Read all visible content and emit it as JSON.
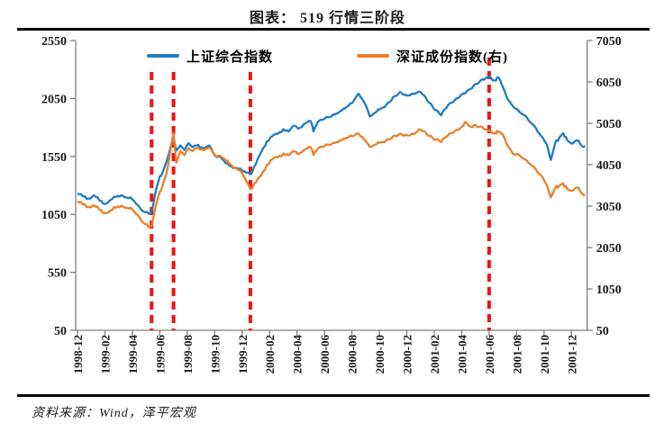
{
  "header": {
    "title": "图表： 519 行情三阶段"
  },
  "footer": {
    "source": "资料来源：Wind，泽平宏观"
  },
  "legend": [
    {
      "label": "上证综合指数",
      "color": "#1E7CC0"
    },
    {
      "label": "深证成份指数(右)",
      "color": "#E8802C"
    }
  ],
  "chart_data": {
    "type": "line",
    "title": "图表： 519 行情三阶段",
    "x_axis": {
      "start": "1998-12",
      "end": "2001-12",
      "months_per_tick": 2,
      "tick_labels": [
        "1998-12",
        "1999-02",
        "1999-04",
        "1999-06",
        "1999-08",
        "1999-10",
        "1999-12",
        "2000-02",
        "2000-04",
        "2000-06",
        "2000-08",
        "2000-10",
        "2000-12",
        "2001-02",
        "2001-04",
        "2001-06",
        "2001-08",
        "2001-10",
        "2001-12"
      ]
    },
    "left_axis": {
      "min": 50,
      "max": 2550,
      "ticks": [
        2550,
        2050,
        1550,
        1050,
        550,
        50
      ]
    },
    "right_axis": {
      "min": 50,
      "max": 7050,
      "ticks": [
        7050,
        6050,
        5050,
        4050,
        3050,
        2050,
        1050,
        50
      ]
    },
    "event_lines": {
      "color": "#F21212",
      "style": "dashed",
      "months": [
        5.4,
        7.0,
        12.6,
        30.0
      ]
    },
    "series": [
      {
        "name": "上证综合指数",
        "axis": "left",
        "color": "#1E7CC0",
        "points": [
          [
            0,
            1230
          ],
          [
            0.4,
            1205
          ],
          [
            0.8,
            1185
          ],
          [
            1.2,
            1215
          ],
          [
            1.6,
            1170
          ],
          [
            2,
            1140
          ],
          [
            2.4,
            1175
          ],
          [
            2.8,
            1200
          ],
          [
            3.2,
            1215
          ],
          [
            3.6,
            1195
          ],
          [
            4,
            1180
          ],
          [
            4.4,
            1130
          ],
          [
            4.8,
            1075
          ],
          [
            5.2,
            1055
          ],
          [
            5.4,
            1060
          ],
          [
            5.7,
            1250
          ],
          [
            6,
            1380
          ],
          [
            6.2,
            1410
          ],
          [
            6.5,
            1510
          ],
          [
            7,
            1715
          ],
          [
            7.2,
            1600
          ],
          [
            7.5,
            1645
          ],
          [
            7.8,
            1605
          ],
          [
            8.1,
            1665
          ],
          [
            8.4,
            1630
          ],
          [
            8.8,
            1650
          ],
          [
            9.2,
            1615
          ],
          [
            9.6,
            1645
          ],
          [
            10,
            1560
          ],
          [
            10.4,
            1545
          ],
          [
            10.8,
            1490
          ],
          [
            11.2,
            1465
          ],
          [
            11.6,
            1450
          ],
          [
            12,
            1430
          ],
          [
            12.3,
            1410
          ],
          [
            12.6,
            1395
          ],
          [
            13,
            1485
          ],
          [
            13.4,
            1590
          ],
          [
            13.8,
            1680
          ],
          [
            14.2,
            1725
          ],
          [
            14.6,
            1745
          ],
          [
            15,
            1785
          ],
          [
            15.4,
            1765
          ],
          [
            15.8,
            1815
          ],
          [
            16.2,
            1795
          ],
          [
            16.6,
            1835
          ],
          [
            17,
            1855
          ],
          [
            17.2,
            1765
          ],
          [
            17.5,
            1845
          ],
          [
            18,
            1875
          ],
          [
            18.5,
            1895
          ],
          [
            19,
            1925
          ],
          [
            19.5,
            1965
          ],
          [
            20,
            2010
          ],
          [
            20.5,
            2090
          ],
          [
            21,
            1995
          ],
          [
            21.3,
            1895
          ],
          [
            21.7,
            1930
          ],
          [
            22,
            1955
          ],
          [
            22.5,
            1995
          ],
          [
            23,
            2060
          ],
          [
            23.5,
            2105
          ],
          [
            24,
            2075
          ],
          [
            24.5,
            2090
          ],
          [
            25,
            2105
          ],
          [
            25.5,
            2030
          ],
          [
            26,
            1955
          ],
          [
            26.5,
            1905
          ],
          [
            27,
            1990
          ],
          [
            27.5,
            2035
          ],
          [
            28,
            2085
          ],
          [
            28.5,
            2125
          ],
          [
            29,
            2175
          ],
          [
            29.5,
            2215
          ],
          [
            30,
            2240
          ],
          [
            30.4,
            2205
          ],
          [
            30.7,
            2230
          ],
          [
            31,
            2150
          ],
          [
            31.4,
            2035
          ],
          [
            31.8,
            1975
          ],
          [
            32.2,
            1935
          ],
          [
            32.6,
            1905
          ],
          [
            33,
            1845
          ],
          [
            33.4,
            1795
          ],
          [
            33.8,
            1725
          ],
          [
            34.2,
            1655
          ],
          [
            34.5,
            1520
          ],
          [
            34.8,
            1660
          ],
          [
            35.1,
            1710
          ],
          [
            35.4,
            1750
          ],
          [
            35.7,
            1690
          ],
          [
            36,
            1660
          ],
          [
            36.4,
            1690
          ],
          [
            36.8,
            1635
          ],
          [
            37,
            1640
          ]
        ]
      },
      {
        "name": "深证成份指数(右)",
        "axis": "right",
        "color": "#E8802C",
        "points": [
          [
            0,
            3160
          ],
          [
            0.4,
            3090
          ],
          [
            0.8,
            3030
          ],
          [
            1.2,
            3070
          ],
          [
            1.6,
            2960
          ],
          [
            2,
            2880
          ],
          [
            2.4,
            2940
          ],
          [
            2.8,
            3010
          ],
          [
            3.2,
            3060
          ],
          [
            3.6,
            3010
          ],
          [
            4,
            2960
          ],
          [
            4.4,
            2830
          ],
          [
            4.8,
            2650
          ],
          [
            5.2,
            2540
          ],
          [
            5.4,
            2560
          ],
          [
            5.7,
            3050
          ],
          [
            6,
            3400
          ],
          [
            6.2,
            3550
          ],
          [
            6.5,
            3850
          ],
          [
            7,
            4820
          ],
          [
            7.2,
            4100
          ],
          [
            7.5,
            4380
          ],
          [
            7.8,
            4280
          ],
          [
            8.1,
            4450
          ],
          [
            8.4,
            4380
          ],
          [
            8.8,
            4470
          ],
          [
            9.2,
            4400
          ],
          [
            9.6,
            4460
          ],
          [
            10,
            4290
          ],
          [
            10.4,
            4260
          ],
          [
            10.8,
            4150
          ],
          [
            11.2,
            4050
          ],
          [
            11.6,
            3950
          ],
          [
            12,
            3850
          ],
          [
            12.3,
            3650
          ],
          [
            12.6,
            3460
          ],
          [
            13,
            3620
          ],
          [
            13.4,
            3800
          ],
          [
            13.8,
            4050
          ],
          [
            14.2,
            4180
          ],
          [
            14.6,
            4230
          ],
          [
            15,
            4320
          ],
          [
            15.4,
            4280
          ],
          [
            15.8,
            4370
          ],
          [
            16.2,
            4330
          ],
          [
            16.6,
            4420
          ],
          [
            17,
            4470
          ],
          [
            17.2,
            4280
          ],
          [
            17.5,
            4430
          ],
          [
            18,
            4500
          ],
          [
            18.5,
            4540
          ],
          [
            19,
            4600
          ],
          [
            19.5,
            4680
          ],
          [
            20,
            4740
          ],
          [
            20.5,
            4800
          ],
          [
            21,
            4620
          ],
          [
            21.3,
            4480
          ],
          [
            21.7,
            4540
          ],
          [
            22,
            4580
          ],
          [
            22.5,
            4640
          ],
          [
            23,
            4740
          ],
          [
            23.5,
            4800
          ],
          [
            24,
            4760
          ],
          [
            24.5,
            4790
          ],
          [
            25,
            4900
          ],
          [
            25.5,
            4760
          ],
          [
            26,
            4650
          ],
          [
            26.5,
            4600
          ],
          [
            27,
            4760
          ],
          [
            27.5,
            4860
          ],
          [
            28,
            4960
          ],
          [
            28.3,
            5080
          ],
          [
            28.7,
            4960
          ],
          [
            29,
            5010
          ],
          [
            29.5,
            4960
          ],
          [
            30,
            4870
          ],
          [
            30.4,
            4820
          ],
          [
            30.7,
            4840
          ],
          [
            31,
            4780
          ],
          [
            31.4,
            4480
          ],
          [
            31.8,
            4300
          ],
          [
            32.2,
            4280
          ],
          [
            32.6,
            4180
          ],
          [
            33,
            4060
          ],
          [
            33.4,
            3940
          ],
          [
            33.8,
            3780
          ],
          [
            34.2,
            3560
          ],
          [
            34.5,
            3260
          ],
          [
            34.8,
            3480
          ],
          [
            35.1,
            3540
          ],
          [
            35.4,
            3600
          ],
          [
            35.7,
            3460
          ],
          [
            36,
            3420
          ],
          [
            36.4,
            3500
          ],
          [
            36.8,
            3340
          ],
          [
            37,
            3320
          ]
        ]
      }
    ]
  }
}
